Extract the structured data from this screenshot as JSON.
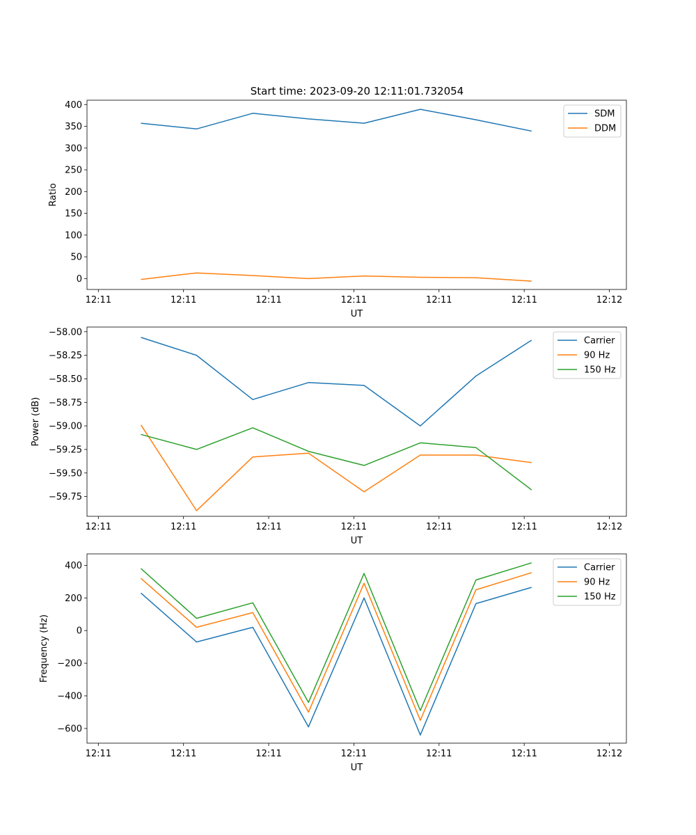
{
  "title": "Start time: 2023-09-20 12:11:01.732054",
  "chart_data": [
    {
      "type": "line",
      "xlabel": "UT",
      "ylabel": "Ratio",
      "xlim": [
        0,
        9.5
      ],
      "ylim": [
        -25,
        410
      ],
      "xticks": [
        0.2,
        1.7,
        3.2,
        4.7,
        6.2,
        7.7,
        9.2
      ],
      "xtick_labels": [
        "12:11",
        "12:11",
        "12:11",
        "12:11",
        "12:11",
        "12:11",
        "12:12"
      ],
      "yticks": [
        0,
        50,
        100,
        150,
        200,
        250,
        300,
        350,
        400
      ],
      "ytick_labels": [
        "0",
        "50",
        "100",
        "150",
        "200",
        "250",
        "300",
        "350",
        "400"
      ],
      "x": [
        0.95,
        1.93,
        2.92,
        3.9,
        4.88,
        5.87,
        6.85,
        7.83
      ],
      "series": [
        {
          "name": "SDM",
          "color": "#1f77b4",
          "values": [
            357,
            344,
            380,
            367,
            357,
            389,
            365,
            339
          ]
        },
        {
          "name": "DDM",
          "color": "#ff7f0e",
          "values": [
            -2,
            13,
            7,
            0,
            6,
            3,
            2,
            -6
          ]
        }
      ],
      "legend": "top-right"
    },
    {
      "type": "line",
      "xlabel": "UT",
      "ylabel": "Power (dB)",
      "xlim": [
        0,
        9.5
      ],
      "ylim": [
        -59.96,
        -57.95
      ],
      "xticks": [
        0.2,
        1.7,
        3.2,
        4.7,
        6.2,
        7.7,
        9.2
      ],
      "xtick_labels": [
        "12:11",
        "12:11",
        "12:11",
        "12:11",
        "12:11",
        "12:11",
        "12:12"
      ],
      "yticks": [
        -59.75,
        -59.5,
        -59.25,
        -59.0,
        -58.75,
        -58.5,
        -58.25,
        -58.0
      ],
      "ytick_labels": [
        "−59.75",
        "−59.50",
        "−59.25",
        "−59.00",
        "−58.75",
        "−58.50",
        "−58.25",
        "−58.00"
      ],
      "x": [
        0.95,
        1.93,
        2.92,
        3.9,
        4.88,
        5.87,
        6.85,
        7.83
      ],
      "series": [
        {
          "name": "Carrier",
          "color": "#1f77b4",
          "values": [
            -58.06,
            -58.25,
            -58.72,
            -58.54,
            -58.57,
            -59.0,
            -58.47,
            -58.09
          ]
        },
        {
          "name": "90 Hz",
          "color": "#ff7f0e",
          "values": [
            -58.99,
            -59.9,
            -59.33,
            -59.29,
            -59.7,
            -59.31,
            -59.31,
            -59.39
          ]
        },
        {
          "name": "150 Hz",
          "color": "#2ca02c",
          "values": [
            -59.09,
            -59.25,
            -59.02,
            -59.27,
            -59.42,
            -59.18,
            -59.23,
            -59.68
          ]
        }
      ],
      "legend": "top-right"
    },
    {
      "type": "line",
      "xlabel": "UT",
      "ylabel": "Frequency (Hz)",
      "xlim": [
        0,
        9.5
      ],
      "ylim": [
        -690,
        470
      ],
      "xticks": [
        0.2,
        1.7,
        3.2,
        4.7,
        6.2,
        7.7,
        9.2
      ],
      "xtick_labels": [
        "12:11",
        "12:11",
        "12:11",
        "12:11",
        "12:11",
        "12:11",
        "12:12"
      ],
      "yticks": [
        -600,
        -400,
        -200,
        0,
        200,
        400
      ],
      "ytick_labels": [
        "−600",
        "−400",
        "−200",
        "0",
        "200",
        "400"
      ],
      "x": [
        0.95,
        1.93,
        2.92,
        3.9,
        4.88,
        5.87,
        6.85,
        7.83
      ],
      "series": [
        {
          "name": "Carrier",
          "color": "#1f77b4",
          "values": [
            230,
            -70,
            20,
            -590,
            200,
            -640,
            165,
            265
          ]
        },
        {
          "name": "90 Hz",
          "color": "#ff7f0e",
          "values": [
            320,
            20,
            110,
            -500,
            290,
            -550,
            250,
            355
          ]
        },
        {
          "name": "150 Hz",
          "color": "#2ca02c",
          "values": [
            380,
            75,
            170,
            -440,
            350,
            -490,
            310,
            415
          ]
        }
      ],
      "legend": "top-right"
    }
  ]
}
